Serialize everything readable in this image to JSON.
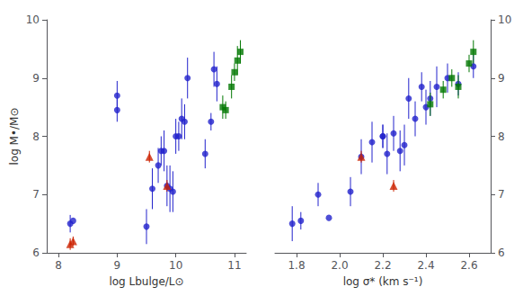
{
  "chart_data": [
    {
      "type": "scatter",
      "x_label": "log Lbulge/L⊙",
      "y_label": "log M•/M⊙",
      "xlim": [
        7.8,
        11.2
      ],
      "ylim": [
        6,
        10
      ],
      "xticks": [
        8,
        9,
        10,
        11
      ],
      "yticks": [
        6,
        7,
        8,
        9,
        10
      ],
      "grid": false,
      "series": [
        {
          "color": "#2222cc",
          "marker": "circle",
          "x": [
            8.2,
            8.25,
            9.0,
            9.0,
            9.5,
            9.6,
            9.7,
            9.75,
            9.8,
            9.85,
            9.9,
            9.95,
            10.0,
            10.05,
            10.1,
            10.15,
            10.2,
            10.5,
            10.6,
            10.65,
            10.7
          ],
          "values": [
            6.5,
            6.55,
            8.7,
            8.45,
            6.45,
            7.1,
            7.5,
            7.75,
            7.75,
            7.15,
            7.1,
            7.05,
            8.0,
            8.0,
            8.3,
            8.25,
            9.0,
            7.7,
            8.25,
            9.15,
            8.9
          ],
          "yerr": [
            0.15,
            0.0,
            0.25,
            0.2,
            0.3,
            0.35,
            0.3,
            0.25,
            0.35,
            0.35,
            0.4,
            0.35,
            0.3,
            0.25,
            0.35,
            0.3,
            0.35,
            0.25,
            0.15,
            0.3,
            0.3
          ]
        },
        {
          "color": "#cc2200",
          "marker": "triangle",
          "x": [
            8.2,
            8.25,
            9.55,
            9.85
          ],
          "values": [
            6.15,
            6.2,
            7.65,
            7.15
          ],
          "yerr": [
            0.1,
            0.08,
            0.1,
            0.1
          ]
        },
        {
          "color": "#007700",
          "marker": "square",
          "x": [
            10.8,
            10.85,
            10.95,
            11.0,
            11.05,
            11.1
          ],
          "values": [
            8.5,
            8.45,
            8.85,
            9.1,
            9.3,
            9.45
          ],
          "yerr": [
            0.2,
            0.15,
            0.2,
            0.15,
            0.25,
            0.2
          ]
        }
      ]
    },
    {
      "type": "scatter",
      "x_label": "log σ* (km s⁻¹)",
      "xlim": [
        1.7,
        2.7
      ],
      "ylim": [
        6,
        10
      ],
      "xticks": [
        1.8,
        {
          "value": 2.0,
          "label": "2.0"
        },
        2.2,
        2.4,
        2.6
      ],
      "yticks": [
        6,
        7,
        8,
        9,
        10
      ],
      "grid": false,
      "series": [
        {
          "color": "#2222cc",
          "marker": "circle",
          "x": [
            1.78,
            1.82,
            1.9,
            1.95,
            2.05,
            2.1,
            2.15,
            2.2,
            2.2,
            2.22,
            2.25,
            2.28,
            2.3,
            2.32,
            2.35,
            2.38,
            2.4,
            2.42,
            2.45,
            2.5,
            2.55,
            2.62
          ],
          "values": [
            6.5,
            6.55,
            7.0,
            6.6,
            7.05,
            7.65,
            7.9,
            8.0,
            8.0,
            7.7,
            8.05,
            7.75,
            7.85,
            8.65,
            8.3,
            8.85,
            8.5,
            8.65,
            8.85,
            9.0,
            8.9,
            9.2
          ],
          "yerr": [
            0.3,
            0.15,
            0.2,
            0.0,
            0.25,
            0.3,
            0.35,
            0.2,
            0.2,
            0.35,
            0.3,
            0.35,
            0.35,
            0.35,
            0.3,
            0.25,
            0.3,
            0.3,
            0.35,
            0.25,
            0.2,
            0.2
          ]
        },
        {
          "color": "#cc2200",
          "marker": "triangle",
          "x": [
            2.1,
            2.25
          ],
          "values": [
            7.65,
            7.15
          ],
          "yerr": [
            0.1,
            0.1
          ]
        },
        {
          "color": "#007700",
          "marker": "square",
          "x": [
            2.42,
            2.48,
            2.52,
            2.55,
            2.6,
            2.62
          ],
          "values": [
            8.55,
            8.8,
            9.0,
            8.85,
            9.25,
            9.45
          ],
          "yerr": [
            0.2,
            0.15,
            0.15,
            0.2,
            0.15,
            0.2
          ]
        }
      ]
    }
  ]
}
